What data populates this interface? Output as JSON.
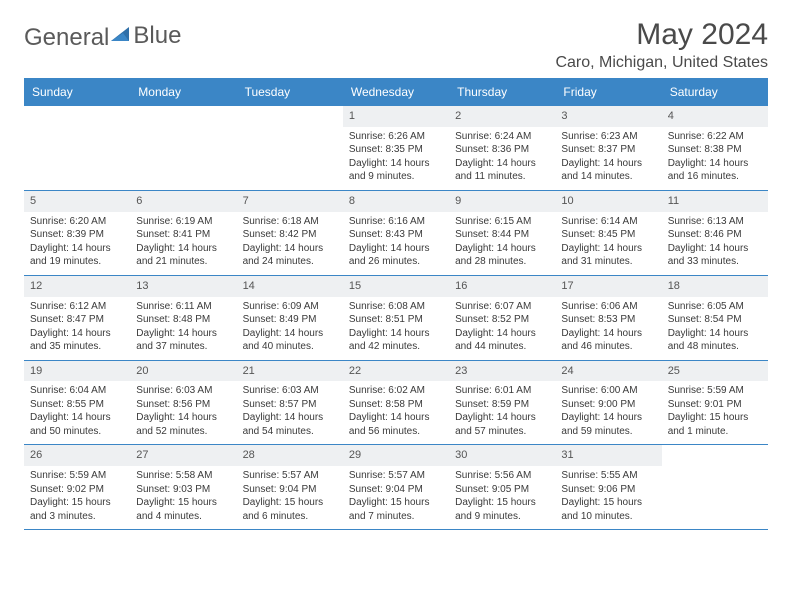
{
  "logo": {
    "text1": "General",
    "text2": "Blue"
  },
  "title": "May 2024",
  "location": "Caro, Michigan, United States",
  "header_bg": "#3b86c6",
  "daynum_bg": "#eef0f2",
  "border_color": "#3b86c6",
  "day_names": [
    "Sunday",
    "Monday",
    "Tuesday",
    "Wednesday",
    "Thursday",
    "Friday",
    "Saturday"
  ],
  "weeks": [
    [
      {
        "empty": true
      },
      {
        "empty": true
      },
      {
        "empty": true
      },
      {
        "num": "1",
        "sunrise": "6:26 AM",
        "sunset": "8:35 PM",
        "daylight": "14 hours and 9 minutes."
      },
      {
        "num": "2",
        "sunrise": "6:24 AM",
        "sunset": "8:36 PM",
        "daylight": "14 hours and 11 minutes."
      },
      {
        "num": "3",
        "sunrise": "6:23 AM",
        "sunset": "8:37 PM",
        "daylight": "14 hours and 14 minutes."
      },
      {
        "num": "4",
        "sunrise": "6:22 AM",
        "sunset": "8:38 PM",
        "daylight": "14 hours and 16 minutes."
      }
    ],
    [
      {
        "num": "5",
        "sunrise": "6:20 AM",
        "sunset": "8:39 PM",
        "daylight": "14 hours and 19 minutes."
      },
      {
        "num": "6",
        "sunrise": "6:19 AM",
        "sunset": "8:41 PM",
        "daylight": "14 hours and 21 minutes."
      },
      {
        "num": "7",
        "sunrise": "6:18 AM",
        "sunset": "8:42 PM",
        "daylight": "14 hours and 24 minutes."
      },
      {
        "num": "8",
        "sunrise": "6:16 AM",
        "sunset": "8:43 PM",
        "daylight": "14 hours and 26 minutes."
      },
      {
        "num": "9",
        "sunrise": "6:15 AM",
        "sunset": "8:44 PM",
        "daylight": "14 hours and 28 minutes."
      },
      {
        "num": "10",
        "sunrise": "6:14 AM",
        "sunset": "8:45 PM",
        "daylight": "14 hours and 31 minutes."
      },
      {
        "num": "11",
        "sunrise": "6:13 AM",
        "sunset": "8:46 PM",
        "daylight": "14 hours and 33 minutes."
      }
    ],
    [
      {
        "num": "12",
        "sunrise": "6:12 AM",
        "sunset": "8:47 PM",
        "daylight": "14 hours and 35 minutes."
      },
      {
        "num": "13",
        "sunrise": "6:11 AM",
        "sunset": "8:48 PM",
        "daylight": "14 hours and 37 minutes."
      },
      {
        "num": "14",
        "sunrise": "6:09 AM",
        "sunset": "8:49 PM",
        "daylight": "14 hours and 40 minutes."
      },
      {
        "num": "15",
        "sunrise": "6:08 AM",
        "sunset": "8:51 PM",
        "daylight": "14 hours and 42 minutes."
      },
      {
        "num": "16",
        "sunrise": "6:07 AM",
        "sunset": "8:52 PM",
        "daylight": "14 hours and 44 minutes."
      },
      {
        "num": "17",
        "sunrise": "6:06 AM",
        "sunset": "8:53 PM",
        "daylight": "14 hours and 46 minutes."
      },
      {
        "num": "18",
        "sunrise": "6:05 AM",
        "sunset": "8:54 PM",
        "daylight": "14 hours and 48 minutes."
      }
    ],
    [
      {
        "num": "19",
        "sunrise": "6:04 AM",
        "sunset": "8:55 PM",
        "daylight": "14 hours and 50 minutes."
      },
      {
        "num": "20",
        "sunrise": "6:03 AM",
        "sunset": "8:56 PM",
        "daylight": "14 hours and 52 minutes."
      },
      {
        "num": "21",
        "sunrise": "6:03 AM",
        "sunset": "8:57 PM",
        "daylight": "14 hours and 54 minutes."
      },
      {
        "num": "22",
        "sunrise": "6:02 AM",
        "sunset": "8:58 PM",
        "daylight": "14 hours and 56 minutes."
      },
      {
        "num": "23",
        "sunrise": "6:01 AM",
        "sunset": "8:59 PM",
        "daylight": "14 hours and 57 minutes."
      },
      {
        "num": "24",
        "sunrise": "6:00 AM",
        "sunset": "9:00 PM",
        "daylight": "14 hours and 59 minutes."
      },
      {
        "num": "25",
        "sunrise": "5:59 AM",
        "sunset": "9:01 PM",
        "daylight": "15 hours and 1 minute."
      }
    ],
    [
      {
        "num": "26",
        "sunrise": "5:59 AM",
        "sunset": "9:02 PM",
        "daylight": "15 hours and 3 minutes."
      },
      {
        "num": "27",
        "sunrise": "5:58 AM",
        "sunset": "9:03 PM",
        "daylight": "15 hours and 4 minutes."
      },
      {
        "num": "28",
        "sunrise": "5:57 AM",
        "sunset": "9:04 PM",
        "daylight": "15 hours and 6 minutes."
      },
      {
        "num": "29",
        "sunrise": "5:57 AM",
        "sunset": "9:04 PM",
        "daylight": "15 hours and 7 minutes."
      },
      {
        "num": "30",
        "sunrise": "5:56 AM",
        "sunset": "9:05 PM",
        "daylight": "15 hours and 9 minutes."
      },
      {
        "num": "31",
        "sunrise": "5:55 AM",
        "sunset": "9:06 PM",
        "daylight": "15 hours and 10 minutes."
      },
      {
        "empty": true
      }
    ]
  ]
}
